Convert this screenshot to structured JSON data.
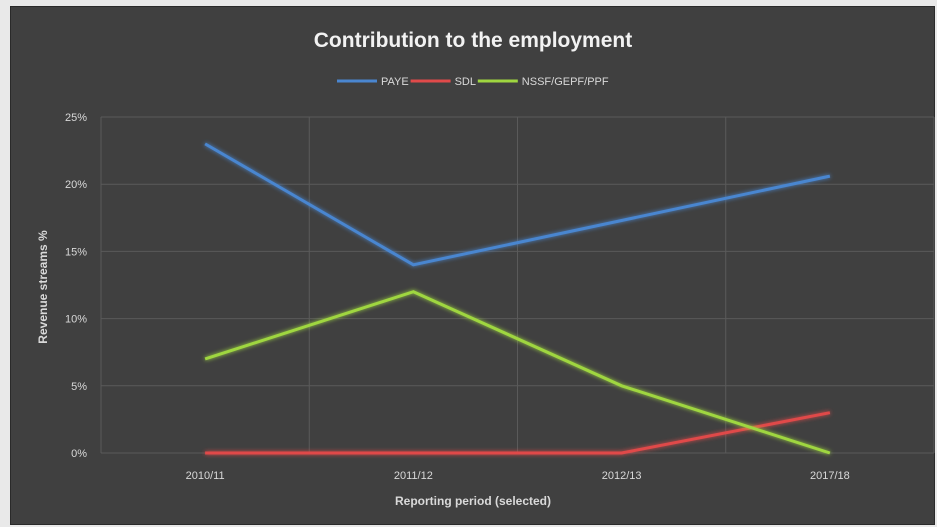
{
  "colors": {
    "background": "#404040",
    "grid": "#5a5a5a",
    "text": "#d9d9d9"
  },
  "chart_data": {
    "type": "line",
    "title": "Contribution to the employment",
    "xlabel": "Reporting period (selected)",
    "ylabel": "Revenue streams %",
    "categories": [
      "2010/11",
      "2011/12",
      "2012/13",
      "2017/18"
    ],
    "ylim": [
      0,
      25
    ],
    "yticks": [
      0,
      5,
      10,
      15,
      20,
      25
    ],
    "ytick_labels": [
      "0%",
      "5%",
      "10%",
      "15%",
      "20%",
      "25%"
    ],
    "grid": true,
    "legend_position": "top",
    "series": [
      {
        "name": "PAYE",
        "color": "#4a86d0",
        "values": [
          23,
          14,
          17.3,
          20.6
        ]
      },
      {
        "name": "SDL",
        "color": "#e04a4a",
        "values": [
          0,
          0,
          0,
          3
        ]
      },
      {
        "name": "NSSF/GEPF/PPF",
        "color": "#9fd640",
        "values": [
          7,
          12,
          5,
          0
        ]
      }
    ]
  }
}
